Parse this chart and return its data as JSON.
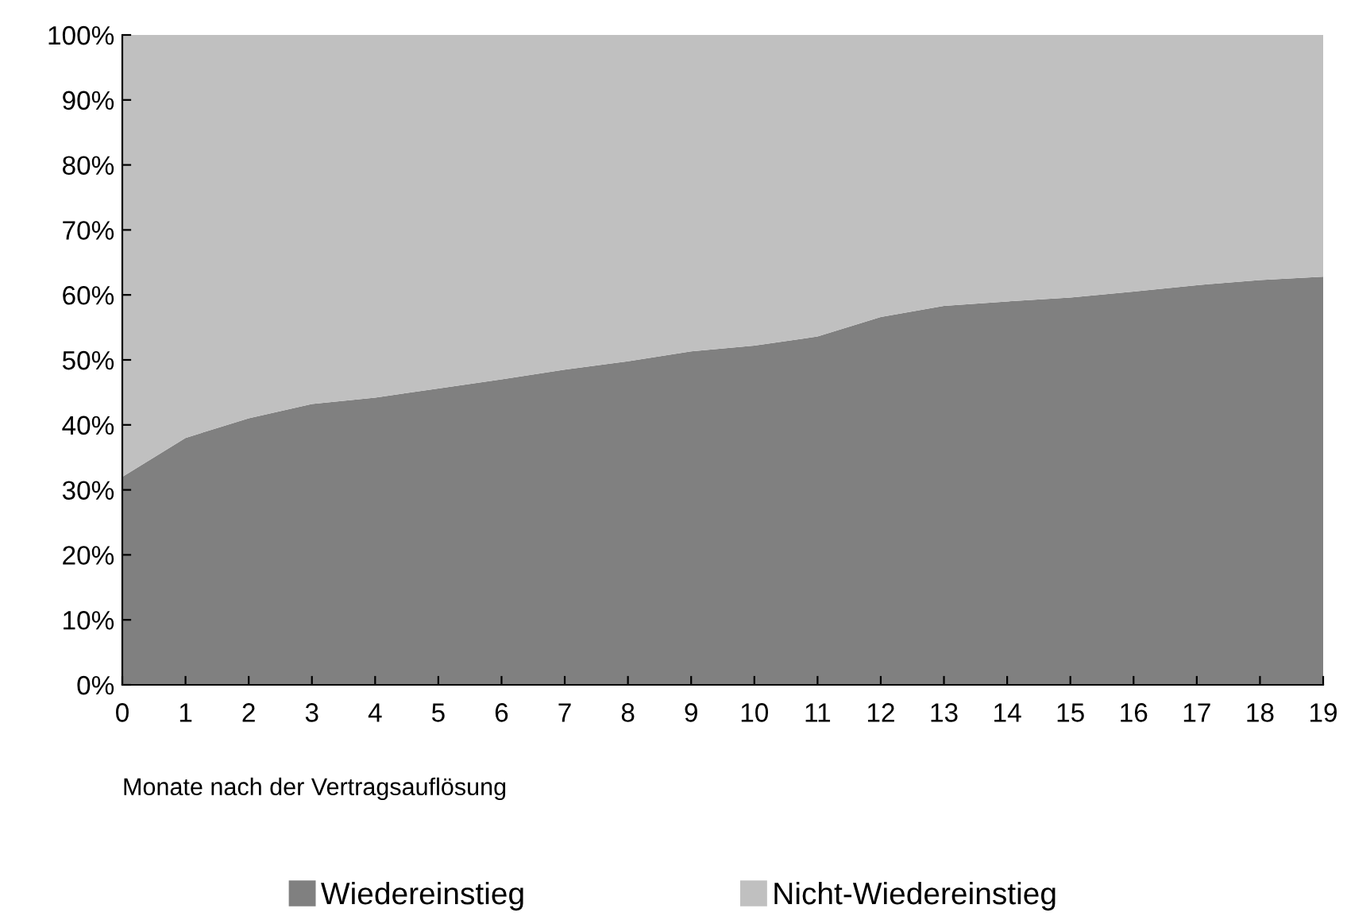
{
  "chart_data": {
    "type": "area",
    "stacked": true,
    "xlabel": "Monate nach der Vertragsauflösung",
    "categories": [
      "0",
      "1",
      "2",
      "3",
      "4",
      "5",
      "6",
      "7",
      "8",
      "9",
      "10",
      "11",
      "12",
      "13",
      "14",
      "15",
      "16",
      "17",
      "18",
      "19"
    ],
    "series": [
      {
        "name": "Wiedereinstieg",
        "color": "#808080",
        "values": [
          32,
          38,
          41,
          43.2,
          44.2,
          45.6,
          47,
          48.5,
          49.8,
          51.3,
          52.2,
          53.6,
          56.6,
          58.3,
          59,
          59.6,
          60.5,
          61.5,
          62.3,
          62.8
        ]
      },
      {
        "name": "Nicht-Wiedereinstieg",
        "color": "#c0c0c0",
        "values": [
          68,
          62,
          59,
          56.8,
          55.8,
          54.4,
          53,
          51.5,
          50.2,
          48.7,
          47.8,
          46.4,
          43.4,
          41.7,
          41,
          40.4,
          39.5,
          38.5,
          37.7,
          37.2
        ]
      }
    ],
    "ylim": [
      0,
      100
    ],
    "yticks": [
      {
        "value": 0,
        "label": "0%"
      },
      {
        "value": 10,
        "label": "10%"
      },
      {
        "value": 20,
        "label": "20%"
      },
      {
        "value": 30,
        "label": "30%"
      },
      {
        "value": 40,
        "label": "40%"
      },
      {
        "value": 50,
        "label": "50%"
      },
      {
        "value": 60,
        "label": "60%"
      },
      {
        "value": 70,
        "label": "70%"
      },
      {
        "value": 80,
        "label": "80%"
      },
      {
        "value": 90,
        "label": "90%"
      },
      {
        "value": 100,
        "label": "100%"
      }
    ],
    "grid": false,
    "legend": "bottom"
  }
}
